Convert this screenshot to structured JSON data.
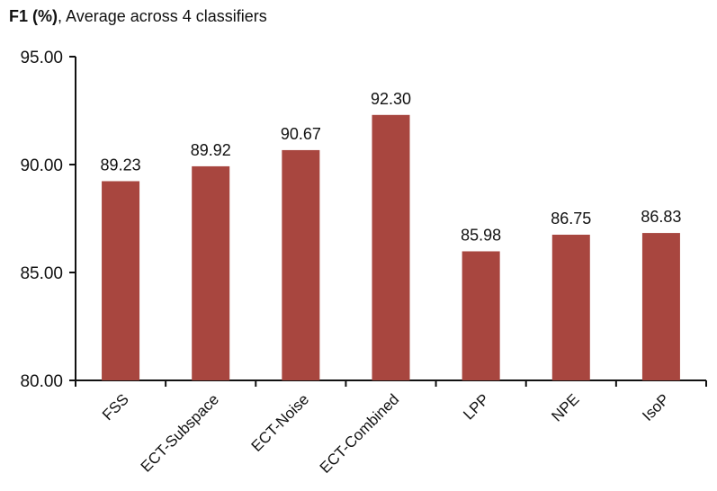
{
  "chart_data": {
    "type": "bar",
    "title_bold": "F1 (%)",
    "title_rest": ", Average across 4 classifiers",
    "categories": [
      "FSS",
      "ECT-Subspace",
      "ECT-Noise",
      "ECT-Combined",
      "LPP",
      "NPE",
      "IsoP"
    ],
    "values": [
      89.23,
      89.92,
      90.67,
      92.3,
      85.98,
      86.75,
      86.83
    ],
    "value_labels": [
      "89.23",
      "89.92",
      "90.67",
      "92.30",
      "85.98",
      "86.75",
      "86.83"
    ],
    "yticks": [
      80,
      85,
      90,
      95
    ],
    "ytick_labels": [
      "80.00",
      "85.00",
      "90.00",
      "95.00"
    ],
    "ylim": [
      80,
      95
    ],
    "xlabel": "",
    "ylabel": "",
    "grid": false,
    "bar_color": "#a8463f"
  }
}
